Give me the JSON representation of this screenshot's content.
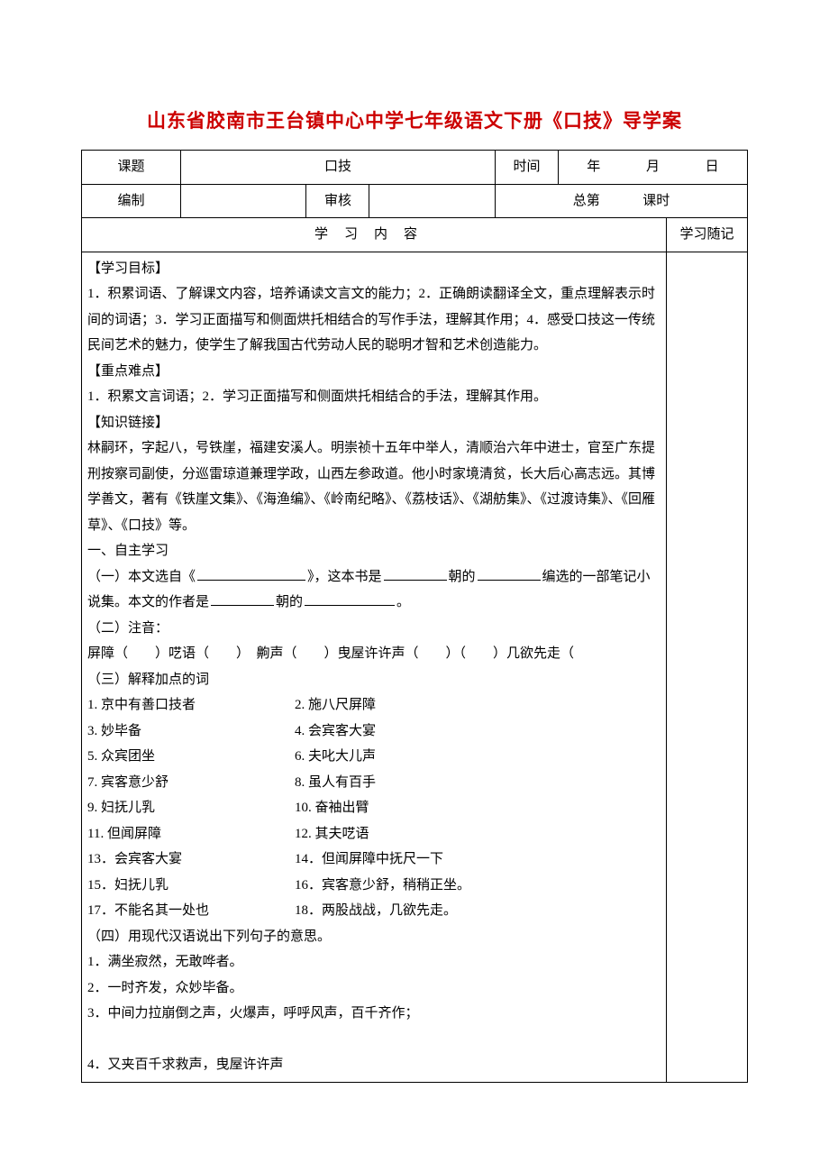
{
  "title_text": "山东省胶南市王台镇中心中学七年级语文下册《口技》导学案",
  "title_color": "#cc0000",
  "header": {
    "topic_label": "课题",
    "topic_value": "口技",
    "time_label": "时间",
    "year": "年",
    "month": "月",
    "day": "日",
    "author_label": "编制",
    "review_label": "审核",
    "total_prefix": "总第",
    "lesson_suffix": "课时",
    "content_header": "学习内容",
    "notes_header": "学习随记"
  },
  "sections": {
    "goal_h": "【学习目标】",
    "goal_body": "1．积累词语、了解课文内容，培养诵读文言文的能力；2．正确朗读翻译全文，重点理解表示时间的词语；3．学习正面描写和侧面烘托相结合的写作手法，理解其作用；4．感受口技这一传统民间艺术的魅力，使学生了解我国古代劳动人民的聪明才智和艺术创造能力。",
    "focus_h": "【重点难点】",
    "focus_body": "1．积累文言词语；2．学习正面描写和侧面烘托相结合的手法，理解其作用。",
    "link_h": "【知识链接】",
    "link_body": "林嗣环，字起八，号铁崖，福建安溪人。明崇祯十五年中举人，清顺治六年中进士，官至广东提刑按察司副使，分巡雷琼道兼理学政，山西左参政道。他小时家境清贫，长大后心高志远。其博学善文，著有《铁崖文集》、《海渔编》、《岭南纪略》、《荔枝话》、《湖舫集》、《过渡诗集》、《回雁草》、《口技》等。",
    "self_h": "一、自主学习",
    "q1a": "（一）本文选自《",
    "q1b": "》，这本书是",
    "q1c": "朝的",
    "q1d": "编选的一部笔记小说集。本文的作者是",
    "q1e": "朝的",
    "q1f": "。",
    "q2": "（二）注音：",
    "q2_body": "屏障（　　）呓语（　　）　齁声（　　）曳屋许许声（　　）（　　）几欲先走（",
    "q3": "（三）解释加点的词",
    "pairs": [
      [
        "1. 京中有善口技者",
        "2. 施八尺屏障"
      ],
      [
        "3. 妙毕备",
        "4. 会宾客大宴"
      ],
      [
        "5. 众宾团坐",
        "6. 夫叱大儿声"
      ],
      [
        "7. 宾客意少舒",
        "8. 虽人有百手"
      ],
      [
        "9. 妇抚儿乳",
        "10. 奋袖出臂"
      ],
      [
        "11. 但闻屏障",
        "12. 其夫呓语"
      ],
      [
        "13．会宾客大宴",
        "14．但闻屏障中抚尺一下"
      ],
      [
        "15．妇抚儿乳",
        "16．宾客意少舒，稍稍正坐。"
      ],
      [
        "17．不能名其一处也",
        "18．两股战战，几欲先走。"
      ]
    ],
    "q4": "（四）用现代汉语说出下列句子的意思。",
    "q4_lines": [
      "1．满坐寂然，无敢哗者。",
      "2．一时齐发，众妙毕备。",
      "3．中间力拉崩倒之声，火爆声，呼呼风声，百千齐作；",
      "",
      "4．又夹百千求救声，曳屋许许声"
    ]
  },
  "style": {
    "body_font_size": 15,
    "line_height": 2.05,
    "border_color": "#000000"
  }
}
